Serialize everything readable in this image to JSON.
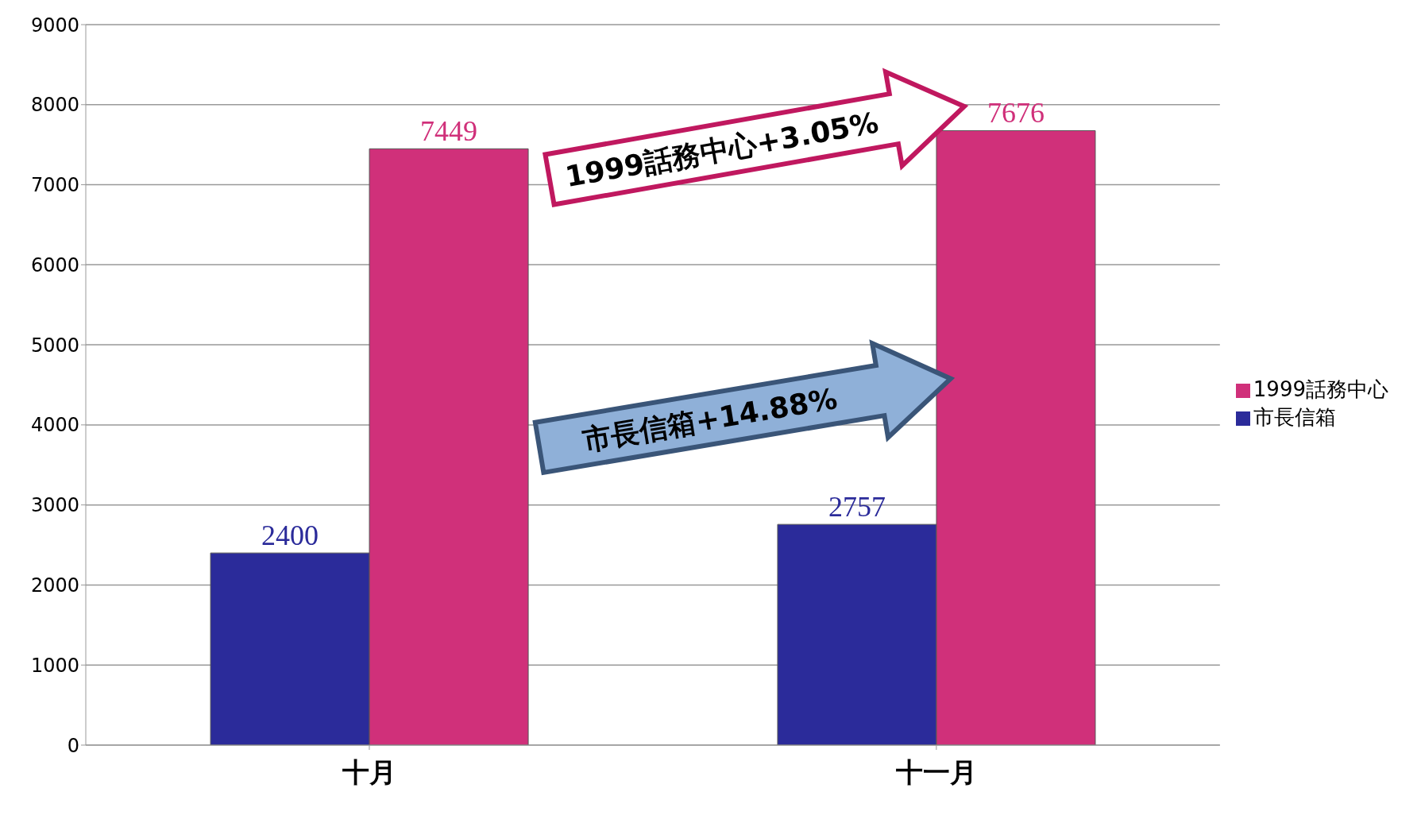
{
  "chart_data": {
    "type": "bar",
    "categories": [
      "十月",
      "十一月"
    ],
    "series": [
      {
        "name": "市長信箱",
        "color": "#2b2b9a",
        "values": [
          2400,
          2757
        ]
      },
      {
        "name": "1999話務中心",
        "color": "#d0307a",
        "values": [
          7449,
          7676
        ]
      }
    ],
    "ylim": [
      0,
      9000
    ],
    "yticks": [
      0,
      1000,
      2000,
      3000,
      4000,
      5000,
      6000,
      7000,
      8000,
      9000
    ],
    "grid": "y",
    "legend": "right",
    "data_labels": true,
    "annotations": [
      "1999話務中心+3.05%",
      "市長信箱+14.88%"
    ]
  }
}
